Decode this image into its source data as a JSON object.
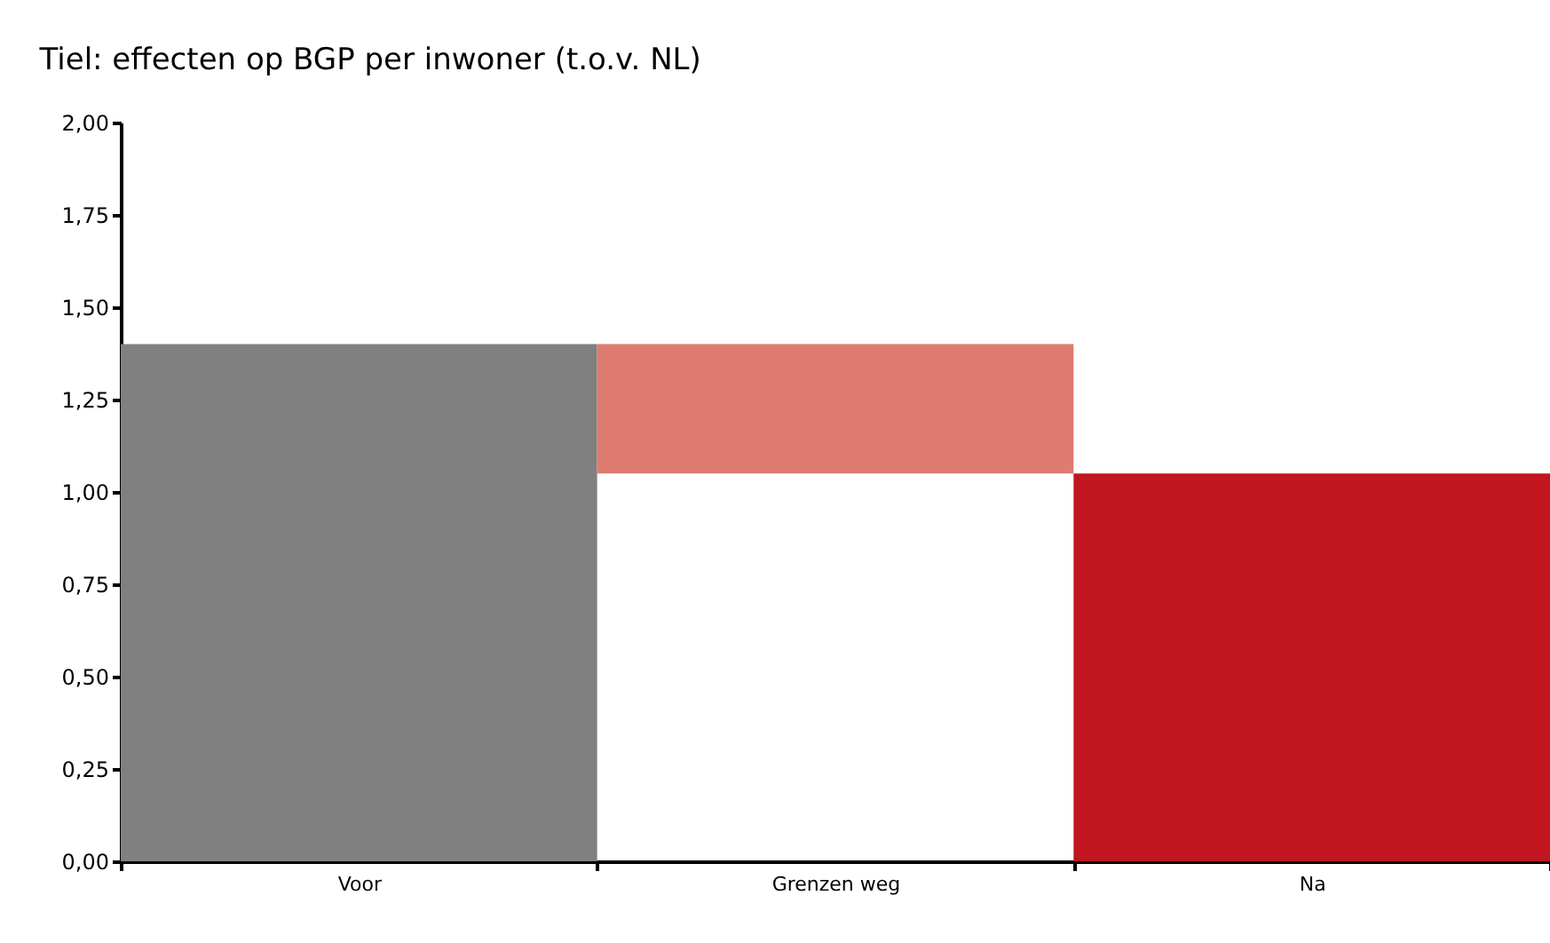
{
  "chart_data": {
    "type": "bar",
    "title": "Tiel: effecten op BGP per inwoner (t.o.v. NL)",
    "categories": [
      "Voor",
      "Grenzen weg",
      "Na"
    ],
    "values": [
      1.4,
      0.35,
      1.05
    ],
    "base": [
      0,
      1.05,
      0
    ],
    "colors": [
      "#808080",
      "#de7b70",
      "#c1151f"
    ],
    "ylim": [
      0,
      2
    ],
    "yticks": [
      {
        "value": 0,
        "label": "0,00"
      },
      {
        "value": 0.25,
        "label": "0,25"
      },
      {
        "value": 0.5,
        "label": "0,50"
      },
      {
        "value": 0.75,
        "label": "0,75"
      },
      {
        "value": 1,
        "label": "1,00"
      },
      {
        "value": 1.25,
        "label": "1,25"
      },
      {
        "value": 1.5,
        "label": "1,50"
      },
      {
        "value": 1.75,
        "label": "1,75"
      },
      {
        "value": 2,
        "label": "2,00"
      }
    ],
    "grid": false,
    "legend": false
  }
}
